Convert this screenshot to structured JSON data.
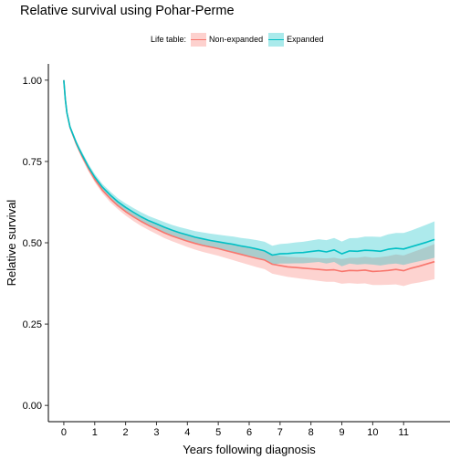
{
  "chart_data": {
    "type": "line",
    "title": "Relative survival using Pohar-Perme",
    "xlabel": "Years following diagnosis",
    "ylabel": "Relative survival",
    "xlim": [
      -0.5,
      12.5
    ],
    "ylim": [
      -0.05,
      1.05
    ],
    "x_ticks": [
      0,
      1,
      2,
      3,
      4,
      5,
      6,
      7,
      8,
      9,
      10,
      11
    ],
    "y_ticks": [
      0.0,
      0.25,
      0.5,
      0.75,
      1.0
    ],
    "y_tick_labels": [
      "0.00",
      "0.25",
      "0.50",
      "0.75",
      "1.00"
    ],
    "grid": false,
    "legend": {
      "title": "Life table:",
      "position": "top"
    },
    "x": [
      0,
      0.05,
      0.1,
      0.2,
      0.3,
      0.4,
      0.5,
      0.6,
      0.8,
      1.0,
      1.25,
      1.5,
      1.75,
      2.0,
      2.25,
      2.5,
      2.75,
      3.0,
      3.25,
      3.5,
      3.75,
      4.0,
      4.25,
      4.5,
      4.75,
      5.0,
      5.25,
      5.5,
      5.75,
      6.0,
      6.25,
      6.5,
      6.75,
      7.0,
      7.25,
      7.5,
      7.75,
      8.0,
      8.25,
      8.5,
      8.75,
      9.0,
      9.25,
      9.5,
      9.75,
      10.0,
      10.25,
      10.5,
      10.75,
      11.0,
      11.25,
      11.5,
      11.75,
      12.0
    ],
    "series": [
      {
        "name": "Non-expanded",
        "color": "#F8766D",
        "values": [
          1.0,
          0.94,
          0.9,
          0.855,
          0.83,
          0.805,
          0.785,
          0.765,
          0.728,
          0.695,
          0.662,
          0.636,
          0.614,
          0.596,
          0.58,
          0.566,
          0.553,
          0.542,
          0.531,
          0.521,
          0.513,
          0.505,
          0.498,
          0.492,
          0.487,
          0.482,
          0.476,
          0.47,
          0.464,
          0.458,
          0.452,
          0.447,
          0.434,
          0.43,
          0.426,
          0.424,
          0.422,
          0.42,
          0.418,
          0.416,
          0.417,
          0.412,
          0.415,
          0.414,
          0.416,
          0.412,
          0.413,
          0.415,
          0.418,
          0.414,
          0.422,
          0.428,
          0.435,
          0.442
        ],
        "lower": [
          1.0,
          0.935,
          0.895,
          0.849,
          0.823,
          0.798,
          0.777,
          0.756,
          0.719,
          0.686,
          0.652,
          0.625,
          0.603,
          0.584,
          0.567,
          0.552,
          0.539,
          0.527,
          0.515,
          0.505,
          0.496,
          0.487,
          0.479,
          0.472,
          0.466,
          0.46,
          0.453,
          0.446,
          0.439,
          0.432,
          0.425,
          0.419,
          0.405,
          0.4,
          0.395,
          0.392,
          0.389,
          0.386,
          0.383,
          0.38,
          0.38,
          0.374,
          0.376,
          0.374,
          0.375,
          0.37,
          0.37,
          0.371,
          0.372,
          0.367,
          0.374,
          0.378,
          0.383,
          0.388
        ],
        "upper": [
          1.0,
          0.945,
          0.905,
          0.861,
          0.837,
          0.812,
          0.793,
          0.774,
          0.737,
          0.704,
          0.672,
          0.647,
          0.625,
          0.608,
          0.593,
          0.58,
          0.567,
          0.557,
          0.547,
          0.537,
          0.53,
          0.523,
          0.517,
          0.512,
          0.508,
          0.504,
          0.499,
          0.494,
          0.489,
          0.484,
          0.479,
          0.475,
          0.463,
          0.46,
          0.457,
          0.456,
          0.455,
          0.454,
          0.453,
          0.452,
          0.454,
          0.45,
          0.454,
          0.454,
          0.457,
          0.454,
          0.456,
          0.459,
          0.464,
          0.461,
          0.47,
          0.478,
          0.487,
          0.496
        ]
      },
      {
        "name": "Expanded",
        "color": "#00BFC4",
        "values": [
          1.0,
          0.94,
          0.9,
          0.856,
          0.832,
          0.808,
          0.788,
          0.769,
          0.733,
          0.702,
          0.671,
          0.647,
          0.626,
          0.609,
          0.594,
          0.58,
          0.568,
          0.558,
          0.548,
          0.539,
          0.531,
          0.524,
          0.517,
          0.512,
          0.507,
          0.503,
          0.499,
          0.495,
          0.49,
          0.486,
          0.481,
          0.475,
          0.462,
          0.466,
          0.467,
          0.469,
          0.47,
          0.473,
          0.476,
          0.472,
          0.478,
          0.466,
          0.475,
          0.474,
          0.477,
          0.476,
          0.474,
          0.48,
          0.483,
          0.481,
          0.488,
          0.495,
          0.502,
          0.51
        ],
        "lower": [
          1.0,
          0.935,
          0.895,
          0.85,
          0.825,
          0.801,
          0.78,
          0.76,
          0.724,
          0.692,
          0.661,
          0.636,
          0.615,
          0.597,
          0.581,
          0.566,
          0.554,
          0.543,
          0.532,
          0.523,
          0.514,
          0.506,
          0.498,
          0.492,
          0.486,
          0.481,
          0.476,
          0.471,
          0.465,
          0.46,
          0.454,
          0.447,
          0.433,
          0.436,
          0.436,
          0.437,
          0.437,
          0.439,
          0.441,
          0.436,
          0.441,
          0.428,
          0.436,
          0.433,
          0.435,
          0.433,
          0.43,
          0.434,
          0.436,
          0.432,
          0.438,
          0.443,
          0.448,
          0.454
        ],
        "upper": [
          1.0,
          0.945,
          0.905,
          0.862,
          0.839,
          0.815,
          0.796,
          0.778,
          0.742,
          0.712,
          0.681,
          0.658,
          0.637,
          0.621,
          0.607,
          0.594,
          0.582,
          0.573,
          0.564,
          0.555,
          0.548,
          0.542,
          0.536,
          0.532,
          0.528,
          0.525,
          0.522,
          0.519,
          0.515,
          0.512,
          0.508,
          0.503,
          0.491,
          0.496,
          0.498,
          0.501,
          0.503,
          0.507,
          0.511,
          0.508,
          0.515,
          0.504,
          0.514,
          0.515,
          0.519,
          0.519,
          0.518,
          0.526,
          0.53,
          0.53,
          0.538,
          0.547,
          0.556,
          0.566
        ]
      }
    ]
  }
}
